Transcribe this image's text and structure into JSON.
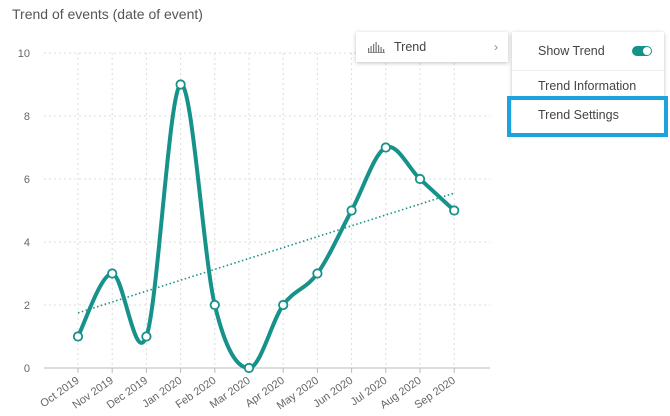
{
  "chart_title": "Trend of events (date of event)",
  "context_menu": {
    "trend_item": {
      "label": "Trend",
      "icon": "chart-bars-icon",
      "chevron": "›"
    },
    "submenu": {
      "show_trend": {
        "label": "Show Trend",
        "toggle_on": true
      },
      "trend_information": {
        "label": "Trend Information"
      },
      "trend_settings": {
        "label": "Trend Settings",
        "highlighted": true
      }
    }
  },
  "colors": {
    "line": "#16928a",
    "trend": "#16928a",
    "highlight": "#1ea2dc",
    "grid": "#dcdcdc"
  },
  "chart_data": {
    "type": "line",
    "title": "Trend of events (date of event)",
    "xlabel": "",
    "ylabel": "",
    "categories": [
      "Oct 2019",
      "Nov 2019",
      "Dec 2019",
      "Jan 2020",
      "Feb 2020",
      "Mar 2020",
      "Apr 2020",
      "May 2020",
      "Jun 2020",
      "Jul 2020",
      "Aug 2020",
      "Sep 2020"
    ],
    "series": [
      {
        "values": [
          1,
          3,
          1,
          9,
          2,
          0,
          2,
          3,
          5,
          7,
          6,
          5
        ],
        "smooth": true
      }
    ],
    "trendline": {
      "start": 1.75,
      "end": 5.55,
      "style": "dotted"
    },
    "ylim": [
      0,
      10
    ],
    "yticks": [
      0,
      2,
      4,
      6,
      8,
      10
    ],
    "grid": true
  }
}
